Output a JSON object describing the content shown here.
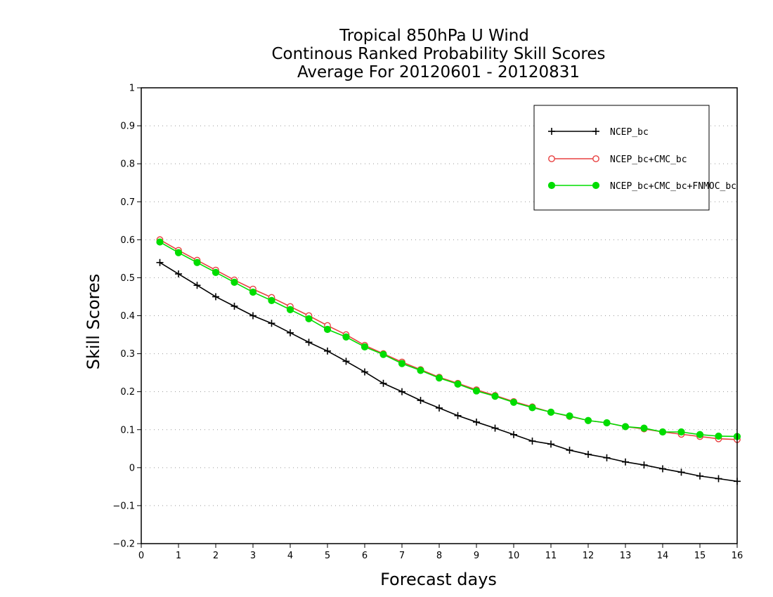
{
  "chart_data": {
    "type": "line",
    "title": [
      "Tropical 850hPa U Wind",
      "Continous Ranked Probability Skill Scores",
      "Average For 20120601 - 20120831"
    ],
    "xlabel": "Forecast days",
    "ylabel": "Skill Scores",
    "xlim": [
      0,
      16
    ],
    "ylim": [
      -0.2,
      1
    ],
    "xticks": [
      "0",
      "1",
      "2",
      "3",
      "4",
      "5",
      "6",
      "7",
      "8",
      "9",
      "10",
      "11",
      "12",
      "13",
      "14",
      "15",
      "16"
    ],
    "yticks": [
      "−0.2",
      "−0.1",
      "0",
      "0.1",
      "0.2",
      "0.3",
      "0.4",
      "0.5",
      "0.6",
      "0.7",
      "0.8",
      "0.9",
      "1"
    ],
    "grid": true,
    "legend_position": "top-right",
    "x": [
      0.5,
      1,
      1.5,
      2,
      2.5,
      3,
      3.5,
      4,
      4.5,
      5,
      5.5,
      6,
      6.5,
      7,
      7.5,
      8,
      8.5,
      9,
      9.5,
      10,
      10.5,
      11,
      11.5,
      12,
      12.5,
      13,
      13.5,
      14,
      14.5,
      15,
      15.5,
      16
    ],
    "series": [
      {
        "name": "NCEP_bc",
        "color": "#000000",
        "marker": "plus",
        "values": [
          0.54,
          0.51,
          0.48,
          0.45,
          0.425,
          0.4,
          0.38,
          0.355,
          0.33,
          0.307,
          0.28,
          0.252,
          0.222,
          0.2,
          0.177,
          0.157,
          0.137,
          0.12,
          0.104,
          0.087,
          0.07,
          0.062,
          0.046,
          0.035,
          0.026,
          0.015,
          0.007,
          -0.003,
          -0.012,
          -0.022,
          -0.029,
          -0.036
        ]
      },
      {
        "name": "NCEP_bc+CMC_bc",
        "color": "#e84040",
        "marker": "open-circle",
        "values": [
          0.6,
          0.572,
          0.546,
          0.52,
          0.494,
          0.47,
          0.448,
          0.424,
          0.4,
          0.374,
          0.35,
          0.322,
          0.3,
          0.278,
          0.258,
          0.238,
          0.222,
          0.205,
          0.19,
          0.174,
          0.16,
          0.146,
          0.135,
          0.124,
          0.118,
          0.108,
          0.102,
          0.094,
          0.088,
          0.082,
          0.076,
          0.074
        ]
      },
      {
        "name": "NCEP_bc+CMC_bc+FNMOC_bc",
        "color": "#00dd00",
        "marker": "filled-circle",
        "values": [
          0.594,
          0.566,
          0.54,
          0.514,
          0.488,
          0.462,
          0.44,
          0.416,
          0.392,
          0.364,
          0.344,
          0.318,
          0.298,
          0.274,
          0.256,
          0.236,
          0.22,
          0.202,
          0.188,
          0.172,
          0.158,
          0.146,
          0.136,
          0.124,
          0.118,
          0.108,
          0.104,
          0.094,
          0.094,
          0.087,
          0.083,
          0.082
        ]
      }
    ]
  }
}
